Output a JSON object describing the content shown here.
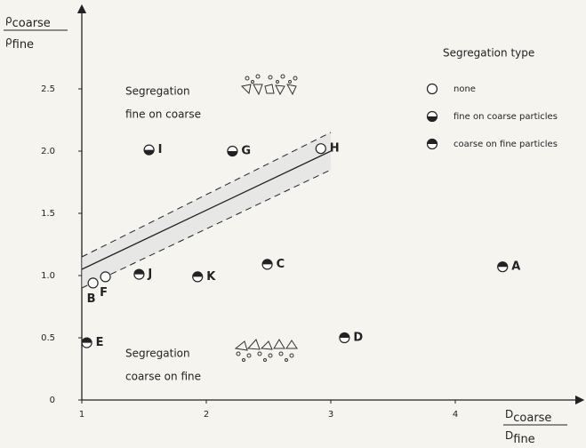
{
  "chart_data": {
    "type": "scatter",
    "y_label": {
      "symbol": "ρ",
      "numerator_sub": "coarse",
      "denominator_sub": "fine"
    },
    "x_label": {
      "symbol": "D",
      "numerator_sub": "coarse",
      "denominator_sub": "fine"
    },
    "xlim": [
      1,
      5
    ],
    "ylim": [
      0,
      3.1
    ],
    "xticks": [
      1,
      2,
      3,
      4
    ],
    "yticks": [
      0,
      {
        "value": 0.5,
        "label": "0.5"
      },
      {
        "value": 1,
        "label": "1.0"
      },
      1.5,
      {
        "value": 2,
        "label": "2.0"
      },
      2.5
    ],
    "annotations": [
      {
        "lines": [
          "Segregation",
          "fine on coarse"
        ],
        "x": 1.35,
        "y": 2.48
      },
      {
        "lines": [
          "Segregation",
          "coarse on fine"
        ],
        "x": 1.35,
        "y": 0.37
      }
    ],
    "legend_title": "Segregation type",
    "series": [
      {
        "name": "none",
        "marker": "open",
        "labels": [
          "H",
          "B",
          "F"
        ],
        "x": [
          2.92,
          1.09,
          1.19
        ],
        "values": [
          2.02,
          0.94,
          0.99
        ]
      },
      {
        "name": "fine on coarse particles",
        "marker": "lower",
        "labels": [
          "I",
          "G"
        ],
        "x": [
          1.54,
          2.21
        ],
        "values": [
          2.01,
          2.0
        ]
      },
      {
        "name": "coarse on fine particles",
        "marker": "upper",
        "labels": [
          "J",
          "K",
          "C",
          "A",
          "D",
          "E"
        ],
        "x": [
          1.46,
          1.93,
          2.49,
          4.38,
          3.11,
          1.04
        ],
        "values": [
          1.01,
          0.99,
          1.09,
          1.07,
          0.5,
          0.46
        ]
      }
    ],
    "trend": {
      "x": [
        1,
        3
      ],
      "values": [
        1.05,
        2.0
      ],
      "upper": [
        1.15,
        2.15
      ],
      "lower": [
        0.9,
        1.85
      ]
    }
  }
}
